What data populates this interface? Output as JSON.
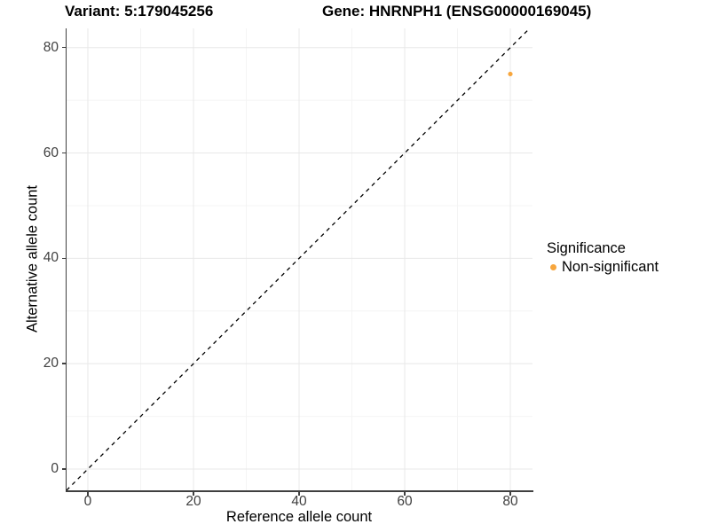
{
  "titles": {
    "variant": "Variant: 5:179045256",
    "gene": "Gene: HNRNPH1 (ENSG00000169045)"
  },
  "axes": {
    "x": {
      "label": "Reference allele count"
    },
    "y": {
      "label": "Alternative allele count"
    }
  },
  "legend": {
    "title": "Significance",
    "items": [
      {
        "label": "Non-significant",
        "color": "#F7A63D",
        "marker": "dot-icon"
      }
    ]
  },
  "colors": {
    "background": "#ffffff",
    "axis_line": "#404040",
    "tick_label": "#404040",
    "grid_major": "#e8e8e8",
    "grid_minor": "#f4f4f4",
    "point_nonsignificant": "#F7A63D",
    "identity_line": "#000000"
  },
  "chart_data": {
    "type": "scatter",
    "title": "Variant: 5:179045256    Gene: HNRNPH1 (ENSG00000169045)",
    "xlabel": "Reference allele count",
    "ylabel": "Alternative allele count",
    "xlim": [
      -4.03,
      84.2
    ],
    "ylim": [
      -4.04,
      83.66
    ],
    "x_ticks": [
      0,
      20,
      40,
      60,
      80
    ],
    "y_ticks": [
      0,
      20,
      40,
      60,
      80
    ],
    "x_minor_ticks": [
      10,
      30,
      50,
      70
    ],
    "y_minor_ticks": [
      10,
      30,
      50,
      70
    ],
    "grid": true,
    "legend_position": "right",
    "series": [
      {
        "name": "Non-significant",
        "color": "#F7A63D",
        "marker": "circle",
        "points": [
          {
            "x": 80,
            "y": 75
          }
        ]
      }
    ],
    "reference_line": {
      "type": "identity y=x",
      "style": "dashed",
      "color": "#000000"
    }
  }
}
